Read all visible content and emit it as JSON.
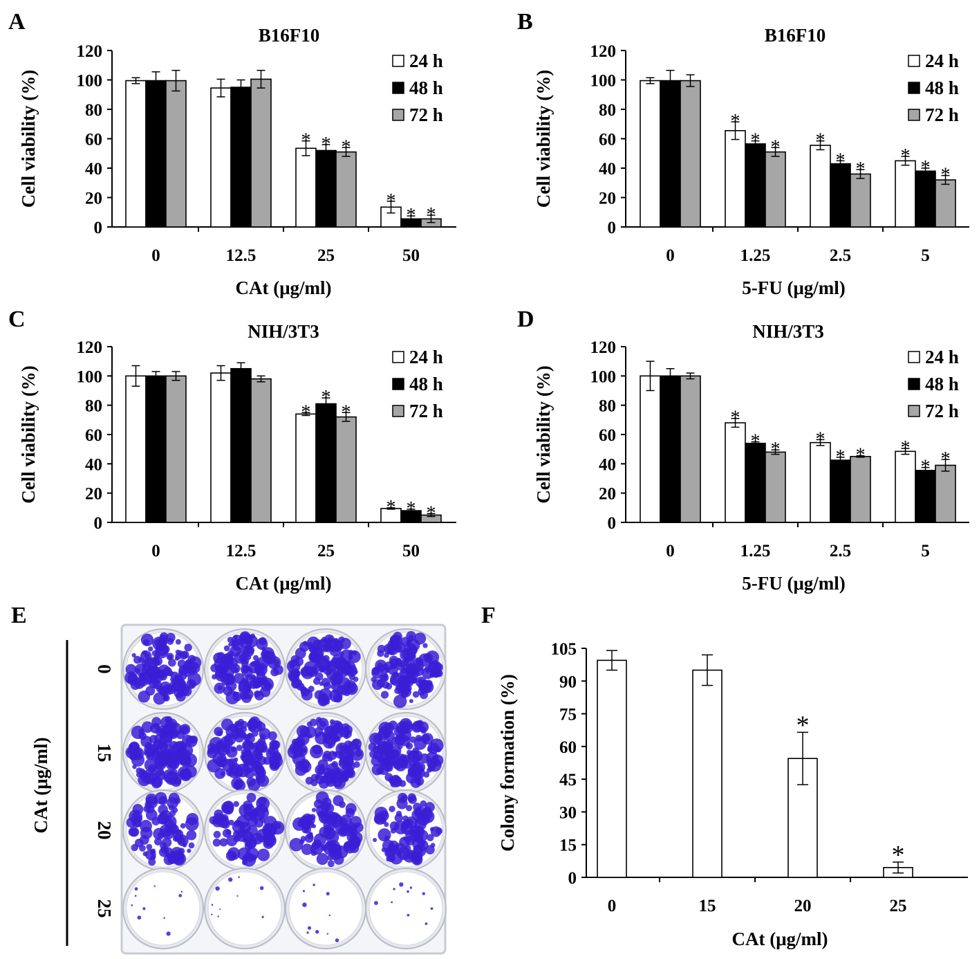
{
  "panels": {
    "A": "A",
    "B": "B",
    "C": "C",
    "D": "D",
    "E": "E",
    "F": "F"
  },
  "colors": {
    "24h": "#ffffff",
    "48h": "#000000",
    "72h": "#a6a6a6",
    "stain": "#3b1fd6"
  },
  "chart_data": [
    {
      "id": "A",
      "type": "bar",
      "title": "B16F10",
      "xlabel": "CAt (μg/ml)",
      "ylabel": "Cell viability  (%)",
      "ylim": [
        0,
        120
      ],
      "yticks": [
        0,
        20,
        40,
        60,
        80,
        100,
        120
      ],
      "categories": [
        "0",
        "12.5",
        "25",
        "50"
      ],
      "series": [
        {
          "name": "24 h",
          "values": [
            99.5,
            94.5,
            53.5,
            13.5
          ],
          "errors": [
            2,
            6,
            5,
            4
          ],
          "sig": [
            false,
            false,
            true,
            true
          ]
        },
        {
          "name": "48 h",
          "values": [
            99.5,
            95,
            52,
            5.5
          ],
          "errors": [
            6,
            5,
            4,
            2
          ],
          "sig": [
            false,
            false,
            true,
            true
          ]
        },
        {
          "name": "72 h",
          "values": [
            99.5,
            100.5,
            51,
            5.5
          ],
          "errors": [
            7,
            6,
            3,
            2.5
          ],
          "sig": [
            false,
            false,
            true,
            true
          ]
        }
      ],
      "legend": "top-right"
    },
    {
      "id": "B",
      "type": "bar",
      "title": "B16F10",
      "xlabel": "5-FU  (μg/ml)",
      "ylabel": "Cell viability  (%)",
      "ylim": [
        0,
        120
      ],
      "yticks": [
        0,
        20,
        40,
        60,
        80,
        100,
        120
      ],
      "categories": [
        "0",
        "1.25",
        "2.5",
        "5"
      ],
      "series": [
        {
          "name": "24 h",
          "values": [
            99.5,
            65.5,
            55.5,
            45
          ],
          "errors": [
            2,
            6,
            3,
            3
          ],
          "sig": [
            false,
            true,
            true,
            true
          ]
        },
        {
          "name": "48 h",
          "values": [
            99.5,
            56.5,
            43,
            38
          ],
          "errors": [
            7,
            2,
            2,
            2
          ],
          "sig": [
            false,
            true,
            true,
            true
          ]
        },
        {
          "name": "72 h",
          "values": [
            99.5,
            51,
            36,
            32
          ],
          "errors": [
            4,
            3,
            3,
            3
          ],
          "sig": [
            false,
            true,
            true,
            true
          ]
        }
      ],
      "legend": "top-right"
    },
    {
      "id": "C",
      "type": "bar",
      "title": "NIH/3T3",
      "xlabel": "CAt (μg/ml)",
      "ylabel": "Cell viability  (%)",
      "ylim": [
        0,
        120
      ],
      "yticks": [
        0,
        20,
        40,
        60,
        80,
        100,
        120
      ],
      "categories": [
        "0",
        "12.5",
        "25",
        "50"
      ],
      "series": [
        {
          "name": "24 h",
          "values": [
            100,
            102,
            74,
            9.5
          ],
          "errors": [
            7,
            5,
            1,
            0.5
          ],
          "sig": [
            false,
            false,
            true,
            true
          ]
        },
        {
          "name": "48 h",
          "values": [
            100,
            105,
            81,
            8
          ],
          "errors": [
            3,
            4,
            4,
            1
          ],
          "sig": [
            false,
            false,
            true,
            true
          ]
        },
        {
          "name": "72 h",
          "values": [
            100,
            98,
            72,
            5
          ],
          "errors": [
            3,
            2,
            3,
            1
          ],
          "sig": [
            false,
            false,
            true,
            true
          ]
        }
      ],
      "legend": "top-right"
    },
    {
      "id": "D",
      "type": "bar",
      "title": "NIH/3T3",
      "xlabel": "5-FU  (μg/ml)",
      "ylabel": "Cell viability  (%)",
      "ylim": [
        0,
        120
      ],
      "yticks": [
        0,
        20,
        40,
        60,
        80,
        100,
        120
      ],
      "categories": [
        "0",
        "1.25",
        "2.5",
        "5"
      ],
      "series": [
        {
          "name": "24 h",
          "values": [
            100,
            68,
            54.5,
            48.5
          ],
          "errors": [
            10,
            3,
            2,
            2
          ],
          "sig": [
            false,
            true,
            true,
            true
          ]
        },
        {
          "name": "48 h",
          "values": [
            100,
            54,
            42.5,
            35.5
          ],
          "errors": [
            5,
            1,
            2,
            2
          ],
          "sig": [
            false,
            true,
            true,
            true
          ]
        },
        {
          "name": "72 h",
          "values": [
            100,
            48,
            45,
            39
          ],
          "errors": [
            2,
            1.5,
            0.5,
            4
          ],
          "sig": [
            false,
            true,
            true,
            true
          ]
        }
      ],
      "legend": "top-right"
    },
    {
      "id": "F",
      "type": "bar",
      "title": "",
      "xlabel": "CAt (μg/ml)",
      "ylabel": "Colony  formation  (%)",
      "ylim": [
        0,
        105
      ],
      "yticks": [
        0,
        15,
        30,
        45,
        60,
        75,
        90,
        105
      ],
      "categories": [
        "0",
        "15",
        "20",
        "25"
      ],
      "series": [
        {
          "values": [
            99.5,
            95,
            54.5,
            4.5
          ],
          "errors": [
            4.5,
            7,
            12,
            2.5
          ],
          "sig": [
            false,
            false,
            true,
            true
          ]
        }
      ]
    }
  ],
  "plate": {
    "ylabel": "CAt (μg/ml)",
    "rows": [
      {
        "label": "0",
        "density": 0.78
      },
      {
        "label": "15",
        "density": 0.82
      },
      {
        "label": "20",
        "density": 0.55
      },
      {
        "label": "25",
        "density": 0.03
      }
    ]
  }
}
